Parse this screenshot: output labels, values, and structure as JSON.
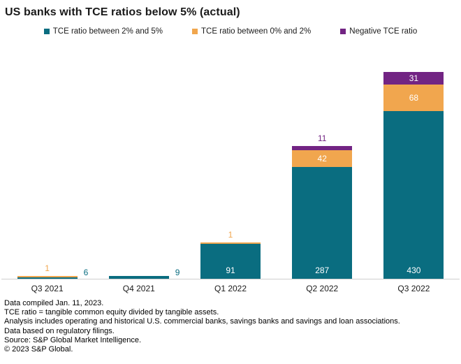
{
  "title": "US banks with TCE ratios below 5% (actual)",
  "legend": [
    {
      "label": "TCE ratio between 2% and 5%",
      "color": "#0a6d80"
    },
    {
      "label": "TCE ratio between 0% and 2%",
      "color": "#f1a64e"
    },
    {
      "label": "Negative TCE ratio",
      "color": "#722483"
    }
  ],
  "chart_data": {
    "type": "bar",
    "stacked": true,
    "title": "US banks with TCE ratios below 5% (actual)",
    "categories": [
      "Q3 2021",
      "Q4 2021",
      "Q1 2022",
      "Q2 2022",
      "Q3 2022"
    ],
    "series": [
      {
        "name": "TCE ratio between 2% and 5%",
        "color": "#0a6d80",
        "values": [
          6,
          9,
          91,
          287,
          430
        ],
        "label_placements": [
          "right",
          "right",
          "inside-bottom",
          "inside-bottom",
          "inside-bottom"
        ]
      },
      {
        "name": "TCE ratio between 0% and 2%",
        "color": "#f1a64e",
        "values": [
          1,
          0,
          1,
          42,
          68
        ],
        "label_placements": [
          "above",
          "none",
          "above",
          "inside",
          "inside"
        ]
      },
      {
        "name": "Negative TCE ratio",
        "color": "#722483",
        "values": [
          0,
          0,
          0,
          11,
          31
        ],
        "label_placements": [
          "none",
          "none",
          "none",
          "above",
          "inside"
        ]
      }
    ],
    "totals": [
      7,
      9,
      92,
      340,
      529
    ],
    "ylim": [
      0,
      529
    ],
    "grid": false,
    "legend_position": "top",
    "xlabel": "",
    "ylabel": ""
  },
  "footnotes": [
    "Data compiled Jan. 11, 2023.",
    "TCE ratio = tangible common equity divided by tangible assets.",
    "Analysis includes operating and historical U.S. commercial banks, savings banks and savings and loan associations.",
    "Data based on regulatory filings.",
    "Source: S&P Global Market Intelligence.",
    "© 2023 S&P Global."
  ]
}
